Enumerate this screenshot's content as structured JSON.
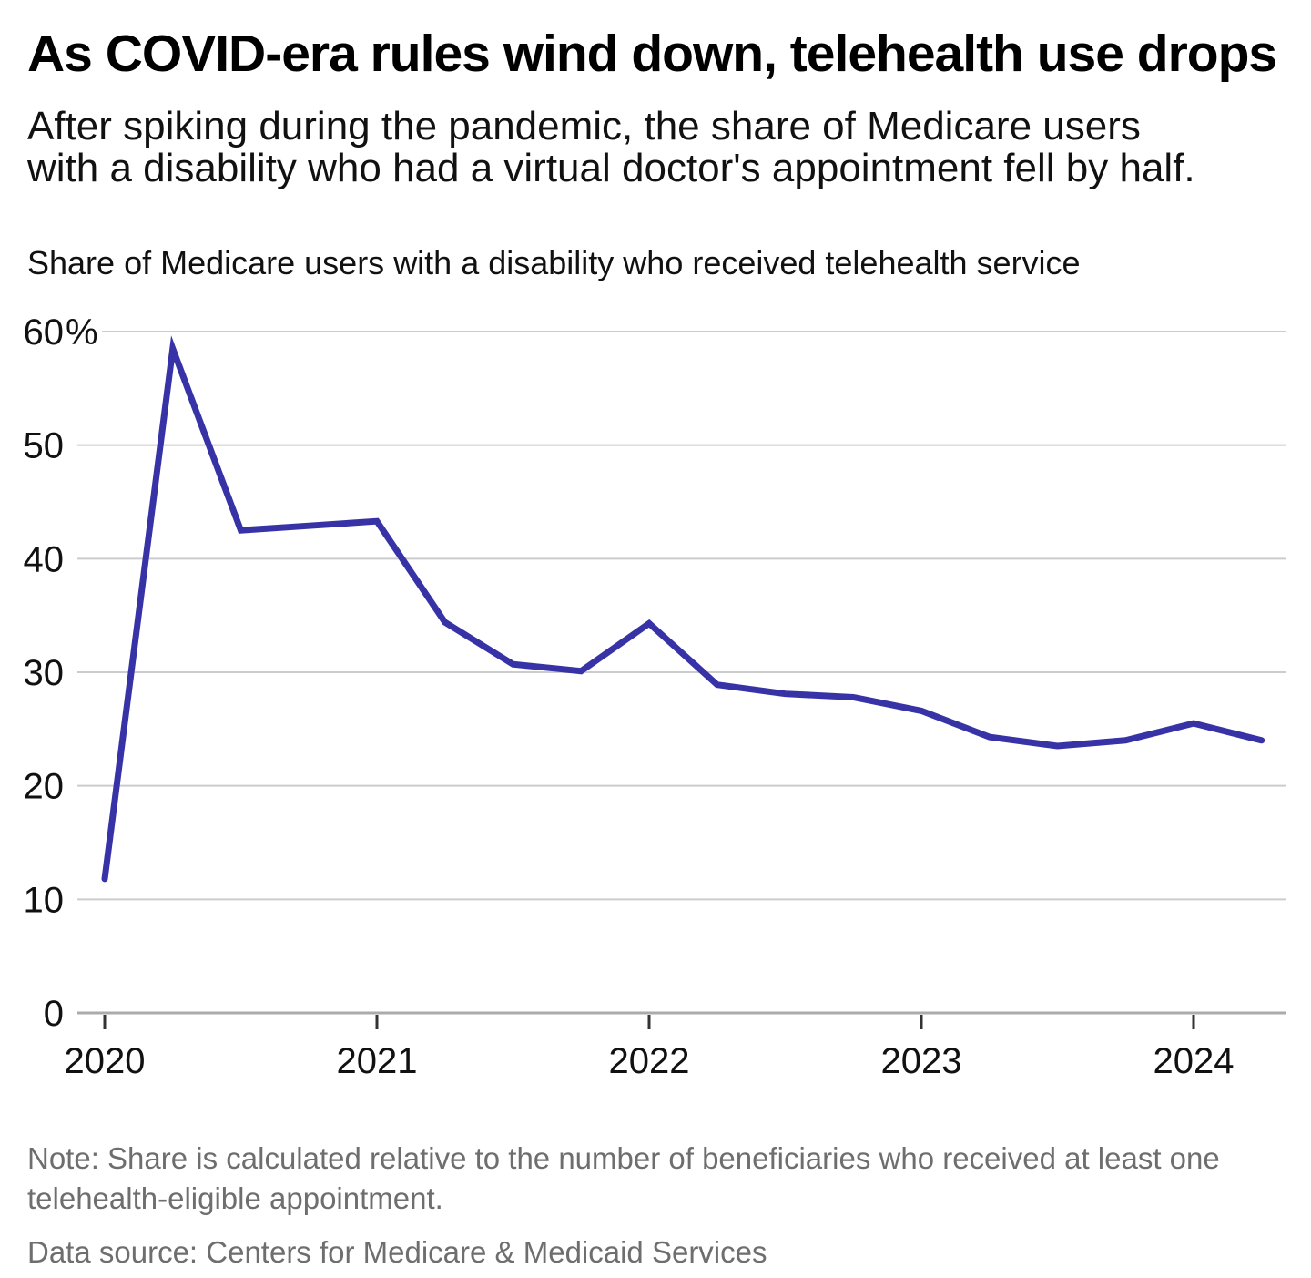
{
  "header": {
    "title": "As COVID-era rules wind down, telehealth use drops",
    "subtitle": "After spiking during the pandemic, the share of Medicare users\nwith a disability who had a virtual doctor's appointment fell by half."
  },
  "chart": {
    "descriptor": "Share of Medicare users with a disability who received telehealth service"
  },
  "chart_data": {
    "type": "line",
    "title": "Share of Medicare users with a disability who received telehealth service",
    "unit": "%",
    "x": [
      "2020 Q1",
      "2020 Q2",
      "2020 Q3",
      "2020 Q4",
      "2021 Q1",
      "2021 Q2",
      "2021 Q3",
      "2021 Q4",
      "2022 Q1",
      "2022 Q2",
      "2022 Q3",
      "2022 Q4",
      "2023 Q1",
      "2023 Q2",
      "2023 Q3",
      "2023 Q4",
      "2024 Q1",
      "2024 Q2"
    ],
    "values": [
      11.8,
      58.5,
      42.5,
      42.9,
      43.3,
      34.4,
      30.7,
      30.1,
      34.3,
      28.9,
      28.1,
      27.8,
      26.6,
      24.3,
      23.5,
      24.0,
      25.5,
      24.0
    ],
    "xlabel": "",
    "ylabel": "Share of Medicare users with a disability who received telehealth service",
    "ylim": [
      0,
      60
    ],
    "yticks": [
      0,
      10,
      20,
      30,
      40,
      50,
      60
    ],
    "xticks": [
      "2020",
      "2021",
      "2022",
      "2023",
      "2024"
    ],
    "grid": "horizontal",
    "legend": "none",
    "line_color": "#3733a7",
    "grid_color": "#cccccc",
    "axis_color": "#ababab",
    "tick_color": "#333333",
    "label_color": "#111111"
  },
  "footer": {
    "note": "Note: Share is calculated relative to the number of beneficiaries who received at least one\ntelehealth-eligible appointment.",
    "source": "Data source: Centers for Medicare & Medicaid Services"
  }
}
